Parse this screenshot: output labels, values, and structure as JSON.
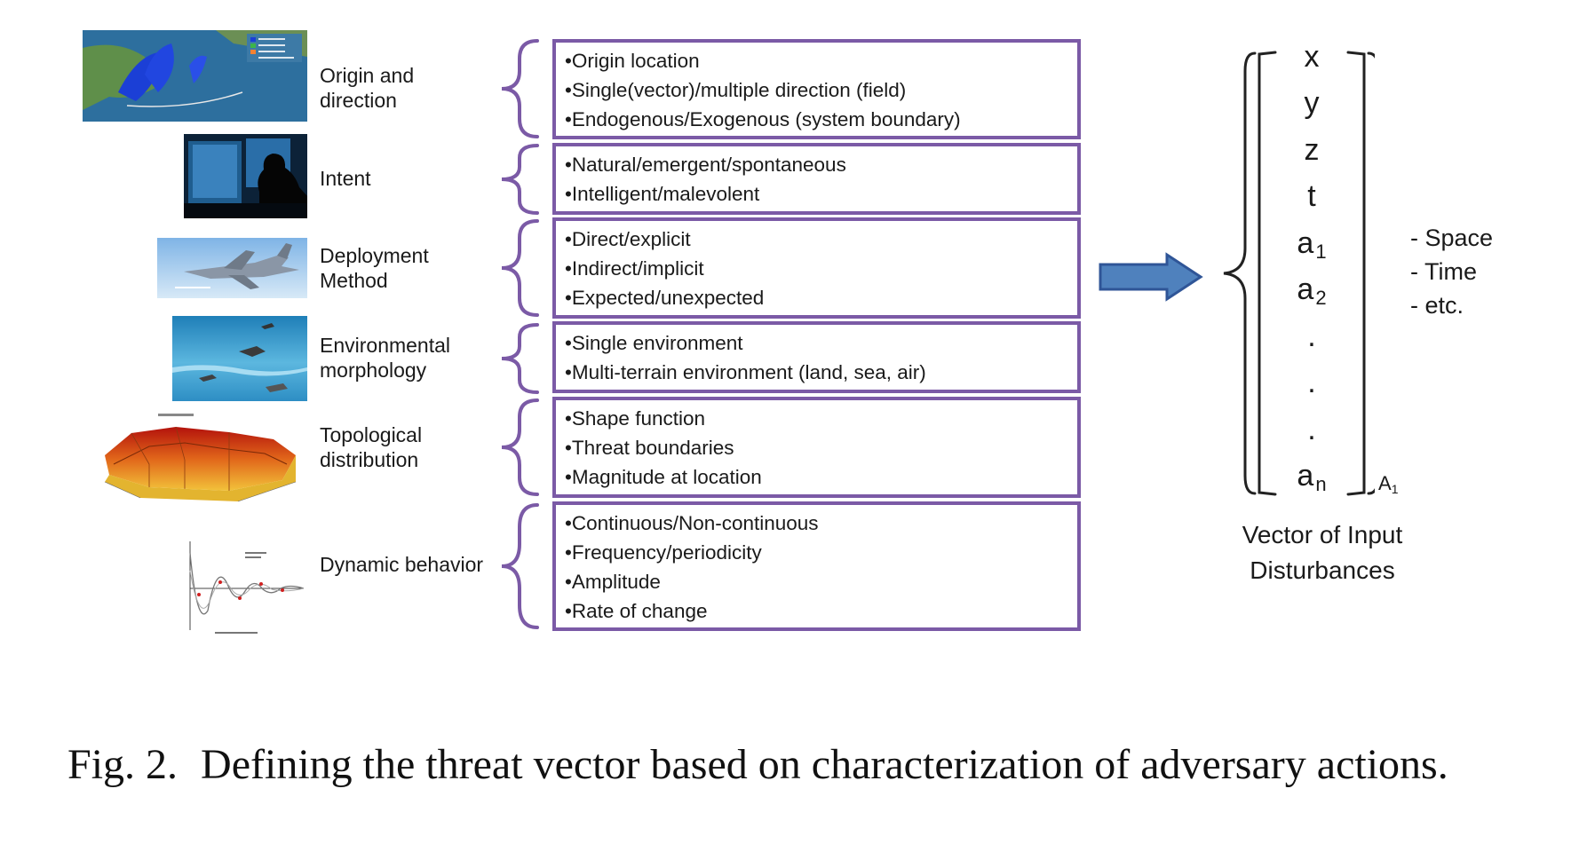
{
  "categories": [
    {
      "label": "Origin and\ndirection",
      "items": [
        "•Origin location",
        "•Single(vector)/multiple direction (field)",
        "•Endogenous/Exogenous (system boundary)"
      ]
    },
    {
      "label": "Intent",
      "items": [
        "•Natural/emergent/spontaneous",
        "•Intelligent/malevolent"
      ]
    },
    {
      "label": "Deployment\nMethod",
      "items": [
        "•Direct/explicit",
        "•Indirect/implicit",
        "•Expected/unexpected"
      ]
    },
    {
      "label": "Environmental\nmorphology",
      "items": [
        "•Single environment",
        "•Multi-terrain environment (land, sea, air)"
      ]
    },
    {
      "label": "Topological\ndistribution",
      "items": [
        "•Shape function",
        "•Threat boundaries",
        "•Magnitude at location"
      ]
    },
    {
      "label": "Dynamic behavior",
      "items": [
        "•Continuous/Non-continuous",
        "•Frequency/periodicity",
        "•Amplitude",
        "•Rate of change"
      ]
    }
  ],
  "vector": {
    "elements": [
      "x",
      "y",
      "z",
      "t",
      "a1",
      "a2",
      ".",
      ".",
      ".",
      "an"
    ],
    "name": "A1",
    "title": "Vector of Input\nDisturbances",
    "notes": [
      "- Space",
      "- Time",
      "- etc."
    ]
  },
  "caption": {
    "label": "Fig. 2.",
    "text": "Defining the threat vector based on characterization of adversary actions."
  },
  "colors": {
    "box_border": "#7b5aa6",
    "arrow_fill": "#4f81bd",
    "arrow_stroke": "#2f5597"
  }
}
